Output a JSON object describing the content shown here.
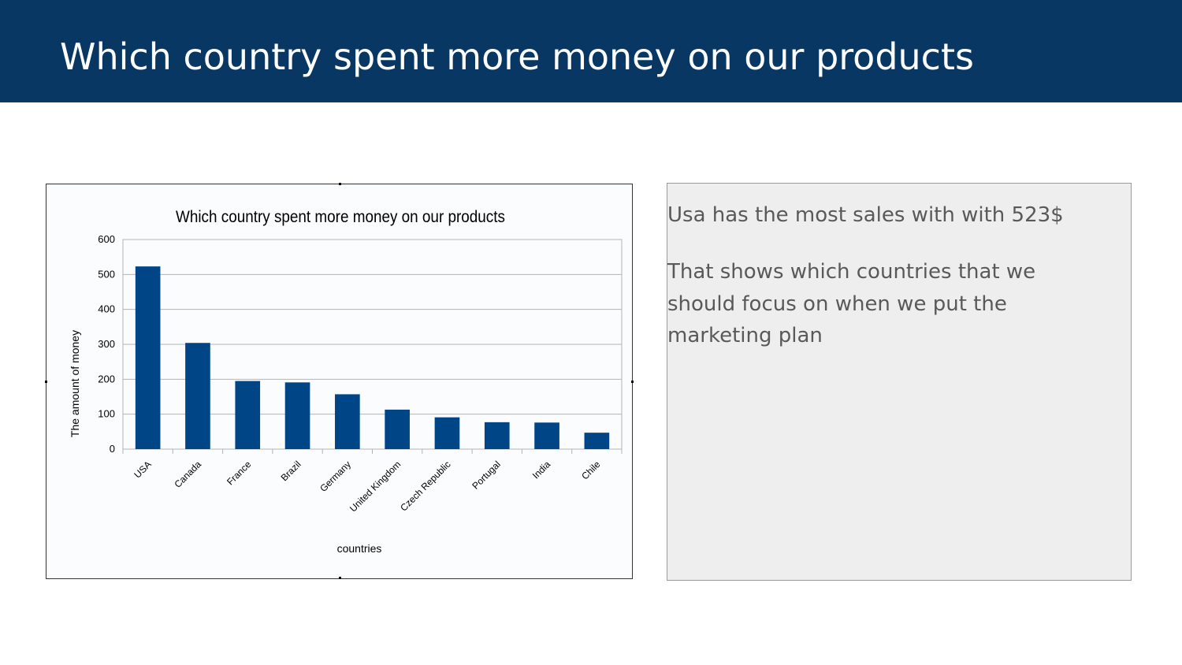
{
  "slide": {
    "title": "Which country spent more money on our products"
  },
  "notes": {
    "paragraph1": "Usa has the most sales with with 523$",
    "paragraph2": "That shows which countries that we should focus on when we put the marketing plan"
  },
  "colors": {
    "header_bg": "#083763",
    "bar": "#004586",
    "plot_bg": "#fbfcfe",
    "grid": "#b3b3b3",
    "notes_bg": "#eeeeee",
    "notes_text": "#595959"
  },
  "chart_data": {
    "type": "bar",
    "title": "Which country spent more money on our products",
    "xlabel": "countries",
    "ylabel": "The amount of money",
    "categories": [
      "USA",
      "Canada",
      "France",
      "Brazil",
      "Germany",
      "United Kingdom",
      "Czech Republic",
      "Portugal",
      "India",
      "Chile"
    ],
    "values": [
      523,
      304,
      195,
      191,
      157,
      113,
      91,
      77,
      76,
      47
    ],
    "ylim": [
      0,
      600
    ],
    "yticks": [
      0,
      100,
      200,
      300,
      400,
      500,
      600
    ],
    "grid": true,
    "legend": "none"
  }
}
